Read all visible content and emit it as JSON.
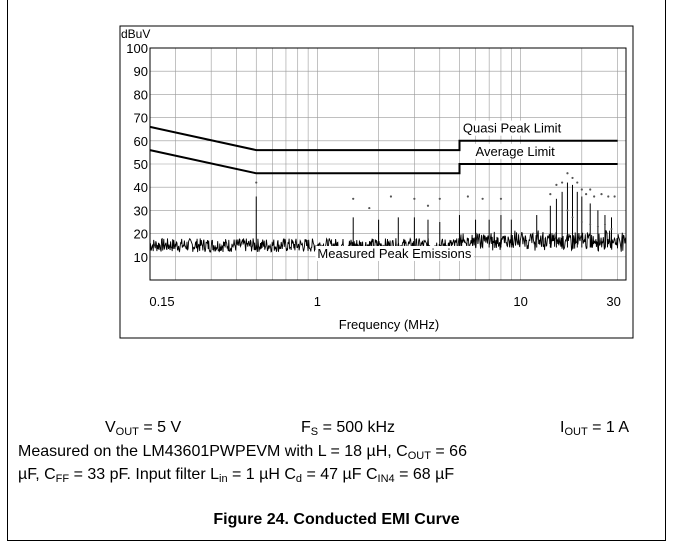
{
  "chart_data": {
    "type": "line",
    "ylabel": "dBuV",
    "xlabel": "Frequency (MHz)",
    "x_scale": "log",
    "xlim": [
      0.15,
      33
    ],
    "ylim": [
      0,
      100
    ],
    "grid": true,
    "y_ticks": [
      10,
      20,
      30,
      40,
      50,
      60,
      70,
      80,
      90,
      100
    ],
    "x_tick_labels": [
      {
        "value": 0.15,
        "label": "0.15"
      },
      {
        "value": 1,
        "label": "1"
      },
      {
        "value": 10,
        "label": "10"
      },
      {
        "value": 30,
        "label": "30"
      }
    ],
    "series": [
      {
        "name": "Quasi Peak Limit",
        "x": [
          0.15,
          0.5,
          5,
          5,
          30
        ],
        "y": [
          66,
          56,
          56,
          60,
          60
        ]
      },
      {
        "name": "Average Limit",
        "x": [
          0.15,
          0.5,
          5,
          5,
          30
        ],
        "y": [
          56,
          46,
          46,
          50,
          50
        ]
      },
      {
        "name": "Measured Peak Emissions",
        "noise_floor_dbuv": [
          12,
          18
        ],
        "peaks": [
          {
            "x": 0.5,
            "y": 36
          },
          {
            "x": 1.5,
            "y": 27
          },
          {
            "x": 2.0,
            "y": 26
          },
          {
            "x": 2.5,
            "y": 27
          },
          {
            "x": 3.0,
            "y": 27
          },
          {
            "x": 3.5,
            "y": 26
          },
          {
            "x": 4.0,
            "y": 25
          },
          {
            "x": 5.0,
            "y": 28
          },
          {
            "x": 6.0,
            "y": 26
          },
          {
            "x": 7.0,
            "y": 26
          },
          {
            "x": 8.0,
            "y": 28
          },
          {
            "x": 9.0,
            "y": 26
          },
          {
            "x": 12,
            "y": 28
          },
          {
            "x": 14,
            "y": 32
          },
          {
            "x": 15,
            "y": 35
          },
          {
            "x": 16,
            "y": 38
          },
          {
            "x": 17,
            "y": 42
          },
          {
            "x": 18,
            "y": 41
          },
          {
            "x": 19,
            "y": 38
          },
          {
            "x": 20,
            "y": 36
          },
          {
            "x": 22,
            "y": 33
          },
          {
            "x": 24,
            "y": 30
          },
          {
            "x": 26,
            "y": 28
          },
          {
            "x": 28,
            "y": 27
          }
        ],
        "qp_marks": [
          {
            "x": 0.5,
            "y": 42
          },
          {
            "x": 1.5,
            "y": 35
          },
          {
            "x": 1.8,
            "y": 31
          },
          {
            "x": 2.3,
            "y": 36
          },
          {
            "x": 3.0,
            "y": 35
          },
          {
            "x": 3.5,
            "y": 32
          },
          {
            "x": 4.0,
            "y": 35
          },
          {
            "x": 5.5,
            "y": 36
          },
          {
            "x": 6.5,
            "y": 35
          },
          {
            "x": 8.0,
            "y": 35
          },
          {
            "x": 14,
            "y": 37
          },
          {
            "x": 15,
            "y": 41
          },
          {
            "x": 16,
            "y": 42
          },
          {
            "x": 17,
            "y": 46
          },
          {
            "x": 18,
            "y": 44
          },
          {
            "x": 19,
            "y": 42
          },
          {
            "x": 20,
            "y": 39
          },
          {
            "x": 21,
            "y": 37
          },
          {
            "x": 22,
            "y": 39
          },
          {
            "x": 23,
            "y": 36
          },
          {
            "x": 25,
            "y": 37
          },
          {
            "x": 27,
            "y": 36
          },
          {
            "x": 29,
            "y": 36
          }
        ],
        "avg_marks": [
          {
            "x": 17,
            "y": 30
          },
          {
            "x": 18,
            "y": 27
          },
          {
            "x": 20,
            "y": 25
          },
          {
            "x": 22,
            "y": 24
          },
          {
            "x": 24,
            "y": 23
          },
          {
            "x": 26,
            "y": 24
          },
          {
            "x": 28,
            "y": 22
          }
        ]
      }
    ],
    "annotations": [
      {
        "text": "Quasi Peak Limit",
        "x": 5.2,
        "y": 63.5
      },
      {
        "text": "Average Limit",
        "x": 6.0,
        "y": 53.5
      },
      {
        "text": "Measured Peak Emissions",
        "x": 1.0,
        "y": 9.5
      }
    ]
  },
  "conditions": {
    "vout_label": "V",
    "vout_sub": "OUT",
    "vout_value": " = 5 V",
    "fs_label": "F",
    "fs_sub": "S",
    "fs_value": " = 500 kHz",
    "iout_label": "I",
    "iout_sub": "OUT",
    "iout_value": " = 1 A"
  },
  "note": {
    "l1_a": "Measured on the LM43601PWPEVM with L = 18 µH, C",
    "l1_sub": "OUT",
    "l1_b": " = 66",
    "l2_a": "µF, C",
    "l2_sub1": "FF",
    "l2_b": " = 33 pF. Input filter L",
    "l2_sub2": "in",
    "l2_c": " = 1 µH C",
    "l2_sub3": "d",
    "l2_d": " = 47 µF C",
    "l2_sub4": "IN4",
    "l2_e": " = 68 µF"
  },
  "figure_caption": "Figure 24. Conducted EMI Curve"
}
